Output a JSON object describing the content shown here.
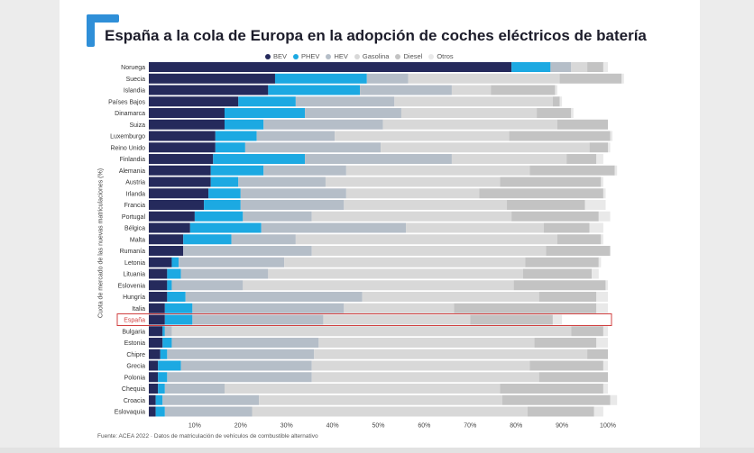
{
  "title": "España a la cola de Europa en la adopción de coches eléctricos de batería",
  "source": "Fuente: ACEA 2022 · Datos de matriculación de vehículos de combustible alternativo",
  "colors": {
    "BEV": "#252a5c",
    "PHEV": "#1ca9e2",
    "HEV": "#b5bec8",
    "Gasolina": "#d8d8d8",
    "Diesel": "#c3c3c3",
    "Otros": "#e9e9e9",
    "highlight": "#d04040",
    "accent": "#2f8fd8"
  },
  "chart_data": {
    "type": "bar",
    "orientation": "horizontal",
    "stacked": true,
    "ylabel": "Cuota de mercado de las nuevas matriculaciones (%)",
    "xlabel": "",
    "xlim": [
      0,
      100
    ],
    "xticks": [
      "10%",
      "20%",
      "30%",
      "40%",
      "50%",
      "60%",
      "70%",
      "80%",
      "90%",
      "100%"
    ],
    "legend_position": "top-center",
    "highlighted_category": "España",
    "categories": [
      "Noruega",
      "Suecia",
      "Islandia",
      "Países Bajos",
      "Dinamarca",
      "Suiza",
      "Luxemburgo",
      "Reino Unido",
      "Finlandia",
      "Alemania",
      "Austria",
      "Irlanda",
      "Francia",
      "Portugal",
      "Bélgica",
      "Malta",
      "Rumanía",
      "Letonia",
      "Lituania",
      "Eslovenia",
      "Hungría",
      "Italia",
      "España",
      "Bulgaria",
      "Estonia",
      "Chipre",
      "Grecia",
      "Polonia",
      "Chequia",
      "Croacia",
      "Eslovaquia"
    ],
    "series": [
      {
        "name": "BEV",
        "values": [
          79.0,
          27.5,
          26.0,
          19.5,
          16.5,
          16.5,
          14.5,
          14.5,
          14.0,
          13.5,
          13.5,
          13.0,
          12.0,
          10.0,
          9.0,
          7.5,
          7.5,
          5.0,
          4.0,
          4.0,
          4.0,
          3.5,
          3.5,
          3.0,
          3.0,
          2.5,
          2.0,
          2.0,
          2.0,
          1.5,
          1.5
        ]
      },
      {
        "name": "PHEV",
        "values": [
          8.5,
          20.0,
          20.0,
          12.5,
          17.5,
          8.5,
          9.0,
          6.5,
          20.0,
          11.5,
          6.0,
          7.0,
          8.0,
          10.5,
          15.5,
          10.5,
          0.0,
          1.5,
          3.0,
          1.0,
          4.0,
          6.0,
          6.0,
          0.5,
          2.0,
          1.5,
          5.0,
          2.0,
          1.5,
          1.5,
          2.0
        ]
      },
      {
        "name": "HEV",
        "values": [
          4.5,
          9.0,
          20.0,
          21.5,
          21.0,
          26.0,
          17.0,
          29.5,
          32.0,
          18.0,
          19.0,
          23.0,
          22.5,
          15.0,
          31.5,
          14.0,
          28.0,
          23.0,
          19.0,
          15.5,
          38.5,
          33.0,
          28.5,
          1.5,
          32.0,
          32.0,
          28.5,
          31.5,
          13.0,
          21.0,
          19.0
        ]
      },
      {
        "name": "Gasolina",
        "values": [
          3.5,
          33.0,
          8.5,
          34.5,
          29.5,
          38.0,
          38.0,
          45.5,
          25.0,
          40.0,
          38.0,
          29.0,
          35.5,
          43.5,
          30.0,
          57.0,
          51.0,
          52.5,
          55.5,
          59.0,
          38.5,
          24.0,
          32.0,
          87.0,
          47.0,
          59.5,
          47.5,
          49.5,
          60.0,
          53.0,
          60.0
        ]
      },
      {
        "name": "Diesel",
        "values": [
          3.5,
          13.5,
          14.0,
          1.5,
          7.5,
          11.0,
          22.0,
          4.0,
          6.5,
          18.5,
          22.0,
          27.0,
          17.0,
          19.0,
          10.0,
          9.5,
          14.0,
          16.0,
          15.0,
          20.0,
          12.5,
          31.0,
          18.0,
          7.0,
          13.5,
          4.5,
          16.0,
          15.0,
          22.5,
          23.5,
          14.5
        ]
      },
      {
        "name": "Otros",
        "values": [
          1.0,
          0.5,
          0.5,
          0.5,
          0.5,
          0.0,
          0.5,
          0.5,
          1.5,
          0.5,
          0.5,
          0.5,
          4.5,
          2.5,
          3.0,
          0.5,
          0.0,
          0.5,
          1.5,
          0.5,
          2.5,
          2.5,
          2.0,
          1.0,
          2.5,
          0.0,
          1.0,
          0.0,
          1.0,
          1.5,
          2.0
        ]
      }
    ]
  }
}
